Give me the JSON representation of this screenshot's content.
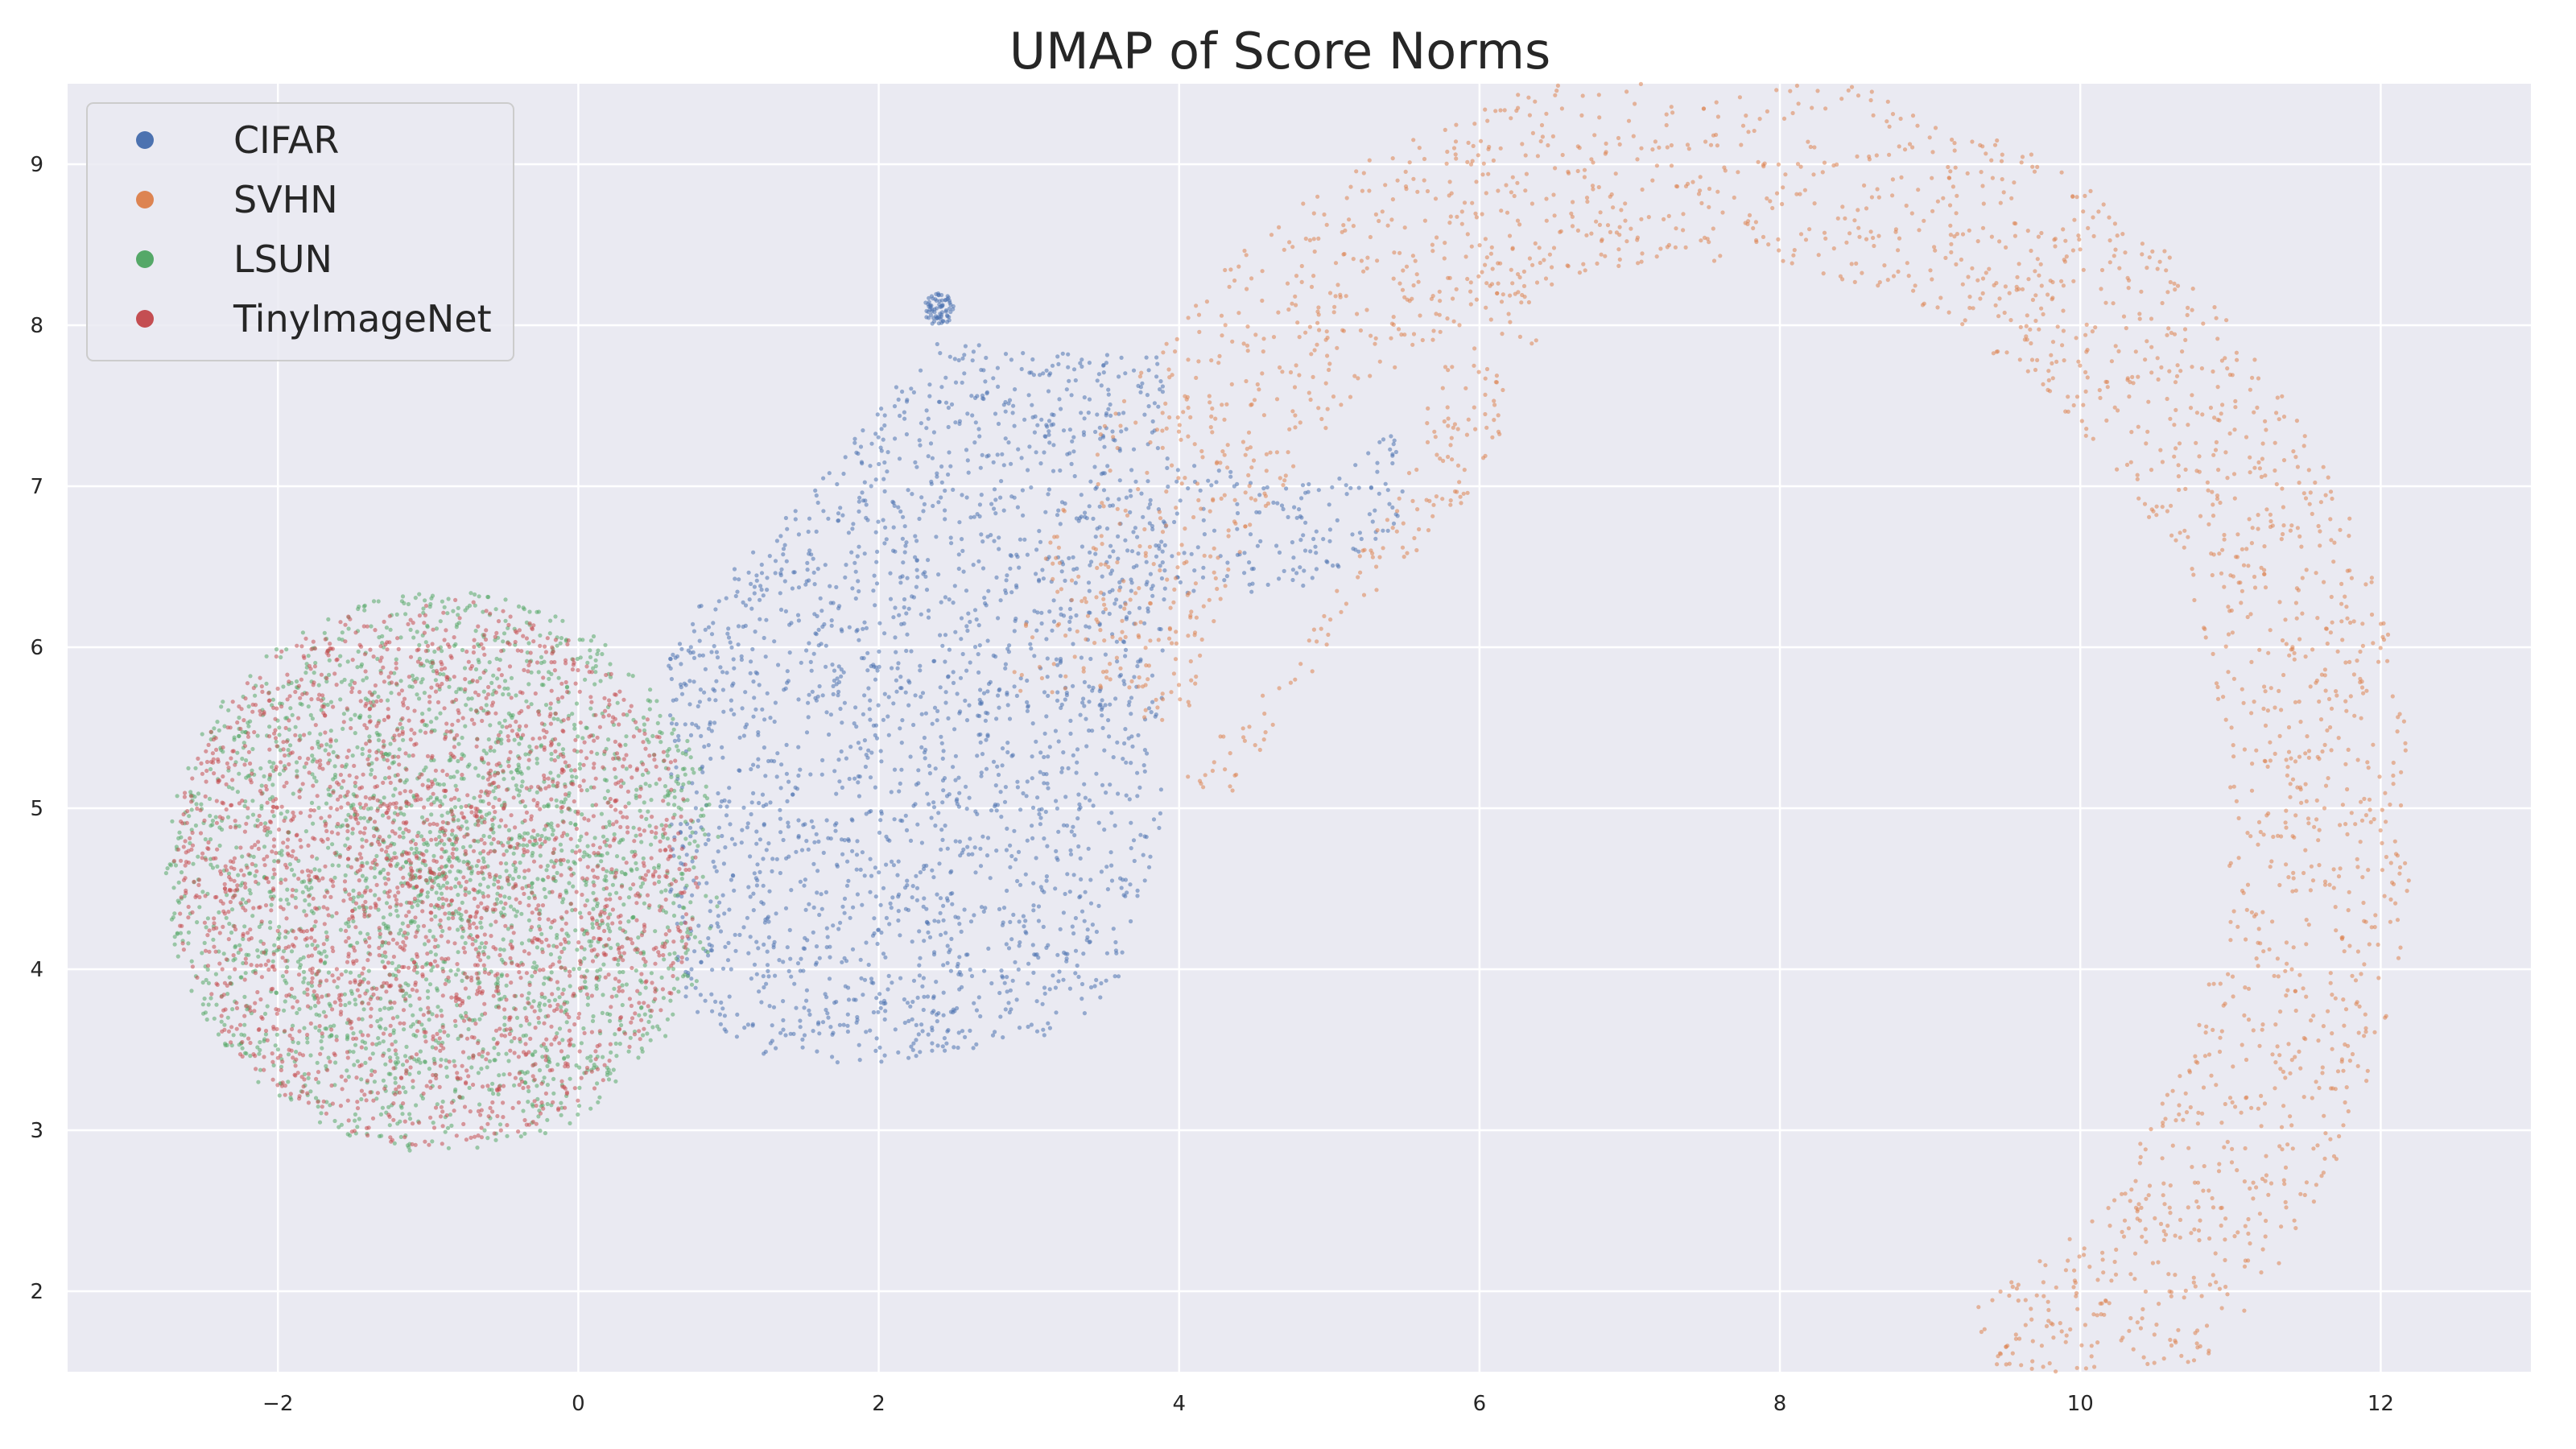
{
  "chart_data": {
    "type": "scatter",
    "title": "UMAP of Score Norms",
    "xlabel": "",
    "ylabel": "",
    "xlim": [
      -3.4,
      13.0
    ],
    "ylim": [
      1.5,
      9.5
    ],
    "x_ticks": [
      -2,
      0,
      2,
      4,
      6,
      8,
      10,
      12
    ],
    "x_tick_labels": [
      "−2",
      "0",
      "2",
      "4",
      "6",
      "8",
      "10",
      "12"
    ],
    "y_ticks": [
      2,
      3,
      4,
      5,
      6,
      7,
      8,
      9
    ],
    "y_tick_labels": [
      "2",
      "3",
      "4",
      "5",
      "6",
      "7",
      "8",
      "9"
    ],
    "grid": true,
    "legend_position": "top-left",
    "background_color": "#eaeaf2",
    "grid_color": "#ffffff",
    "series": [
      {
        "name": "CIFAR",
        "color": "#4c72b0",
        "point_count": 10000,
        "regions": [
          {
            "shape": "polygon",
            "weight": 0.9,
            "vertices": [
              [
                0.6,
                6.0
              ],
              [
                1.0,
                6.5
              ],
              [
                1.5,
                6.9
              ],
              [
                2.0,
                7.5
              ],
              [
                2.4,
                7.9
              ],
              [
                3.0,
                7.85
              ],
              [
                3.9,
                7.8
              ],
              [
                3.9,
                5.0
              ],
              [
                3.6,
                3.85
              ],
              [
                3.2,
                3.6
              ],
              [
                2.0,
                3.4
              ],
              [
                1.2,
                3.45
              ],
              [
                0.7,
                3.8
              ],
              [
                0.6,
                4.5
              ]
            ]
          },
          {
            "shape": "polygon",
            "weight": 0.07,
            "vertices": [
              [
                3.8,
                7.2
              ],
              [
                4.8,
                7.0
              ],
              [
                5.5,
                7.4
              ],
              [
                5.5,
                6.8
              ],
              [
                4.8,
                6.3
              ],
              [
                3.8,
                6.3
              ]
            ]
          },
          {
            "shape": "ellipse",
            "weight": 0.03,
            "cx": 2.4,
            "cy": 8.1,
            "rx": 0.1,
            "ry": 0.1
          }
        ]
      },
      {
        "name": "SVHN",
        "color": "#dd8452",
        "point_count": 10000,
        "regions": [
          {
            "shape": "arc-band",
            "weight": 0.93,
            "cx": 7.5,
            "cy": 4.9,
            "r_inner": 3.5,
            "r_outer": 4.7,
            "angle_start_deg": -60,
            "angle_end_deg": 170
          },
          {
            "shape": "polygon",
            "weight": 0.07,
            "vertices": [
              [
                4.0,
                5.2
              ],
              [
                4.8,
                6.0
              ],
              [
                5.5,
                7.0
              ],
              [
                6.0,
                8.6
              ],
              [
                6.5,
                8.2
              ],
              [
                6.0,
                7.0
              ],
              [
                5.0,
                6.0
              ],
              [
                4.3,
                5.0
              ]
            ]
          }
        ]
      },
      {
        "name": "LSUN",
        "color": "#55a868",
        "point_count": 10000,
        "regions": [
          {
            "shape": "ellipse",
            "weight": 1.0,
            "cx": -0.9,
            "cy": 4.6,
            "rx": 1.85,
            "ry": 1.75
          }
        ]
      },
      {
        "name": "TinyImageNet",
        "color": "#c44e52",
        "point_count": 10000,
        "regions": [
          {
            "shape": "ellipse",
            "weight": 1.0,
            "cx": -0.95,
            "cy": 4.6,
            "rx": 1.75,
            "ry": 1.7
          }
        ]
      }
    ]
  }
}
